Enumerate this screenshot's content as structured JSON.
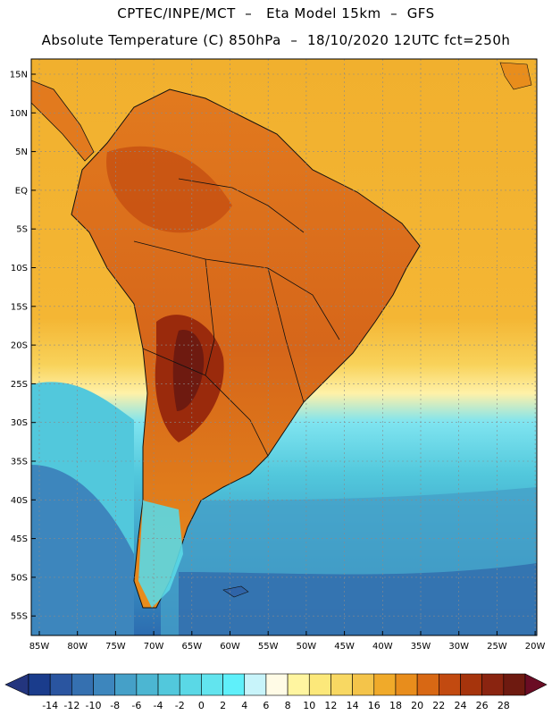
{
  "header": {
    "line1": "CPTEC/INPE/MCT  –   Eta Model 15km  –  GFS",
    "line2": "Absolute Temperature (C) 850hPa  –  18/10/2020 12UTC fct=250h"
  },
  "map": {
    "lat_labels": [
      "15N",
      "10N",
      "5N",
      "EQ",
      "5S",
      "10S",
      "15S",
      "20S",
      "25S",
      "30S",
      "35S",
      "40S",
      "45S",
      "50S",
      "55S"
    ],
    "lon_labels": [
      "85W",
      "80W",
      "75W",
      "70W",
      "65W",
      "60W",
      "55W",
      "50W",
      "45W",
      "40W",
      "35W",
      "30W",
      "25W",
      "20W"
    ]
  },
  "colorbar": {
    "labels": [
      "-14",
      "-12",
      "-10",
      "-8",
      "-6",
      "-4",
      "-2",
      "0",
      "2",
      "4",
      "6",
      "8",
      "10",
      "12",
      "14",
      "16",
      "18",
      "20",
      "22",
      "24",
      "26",
      "28"
    ],
    "colors": [
      "#1a3c8c",
      "#2a55a0",
      "#3570b0",
      "#3d86bd",
      "#45a0c8",
      "#4cb6d2",
      "#52c8dc",
      "#5ad8e6",
      "#62e4ee",
      "#5ff0fa",
      "#c8f4fa",
      "#fffbe6",
      "#fff5a0",
      "#fce87a",
      "#f8d862",
      "#f4c44a",
      "#f0aa2a",
      "#e88d1c",
      "#d86814",
      "#c24a10",
      "#a6340c",
      "#8a2410",
      "#6e1a10"
    ],
    "under_color": "#23357e",
    "over_color": "#6a0c24"
  }
}
